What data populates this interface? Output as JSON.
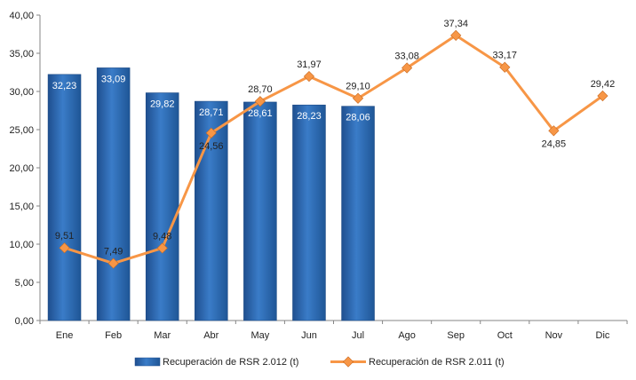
{
  "chart_data": {
    "type": "bar",
    "categories": [
      "Ene",
      "Feb",
      "Mar",
      "Abr",
      "May",
      "Jun",
      "Jul",
      "Ago",
      "Sep",
      "Oct",
      "Nov",
      "Dic"
    ],
    "ylim": [
      0,
      40
    ],
    "ytick_step": 5,
    "ytick_labels": [
      "0,00",
      "5,00",
      "10,00",
      "15,00",
      "20,00",
      "25,00",
      "30,00",
      "35,00",
      "40,00"
    ],
    "legend_position": "bottom",
    "grid": false,
    "series": [
      {
        "name": "Recuperación de RSR 2.012 (t)",
        "type": "bar",
        "color": "#2f6db5",
        "values": [
          32.23,
          33.09,
          29.82,
          28.71,
          28.61,
          28.23,
          28.06,
          null,
          null,
          null,
          null,
          null
        ],
        "labels": [
          "32,23",
          "33,09",
          "29,82",
          "28,71",
          "28,61",
          "28,23",
          "28,06",
          "",
          "",
          "",
          "",
          ""
        ]
      },
      {
        "name": "Recuperación de RSR 2.011 (t)",
        "type": "line",
        "color": "#f79646",
        "values": [
          9.51,
          7.49,
          9.48,
          24.56,
          28.7,
          31.97,
          29.1,
          33.08,
          37.34,
          33.17,
          24.85,
          29.42
        ],
        "labels": [
          "9,51",
          "7,49",
          "9,48",
          "24,56",
          "28,70",
          "31,97",
          "29,10",
          "33,08",
          "37,34",
          "33,17",
          "24,85",
          "29,42"
        ]
      }
    ]
  }
}
